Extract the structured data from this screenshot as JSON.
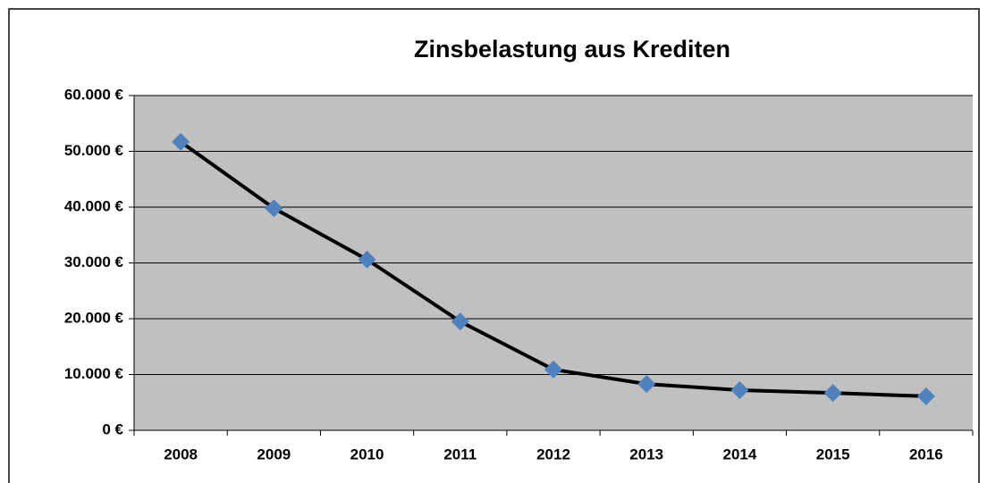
{
  "chart_data": {
    "type": "line",
    "title": "Zinsbelastung aus Krediten",
    "categories": [
      "2008",
      "2009",
      "2010",
      "2011",
      "2012",
      "2013",
      "2014",
      "2015",
      "2016"
    ],
    "series": [
      {
        "name": "Zinsbelastung",
        "color": "#4f81bd",
        "line_color": "#000000",
        "values": [
          51700,
          39800,
          30600,
          19500,
          10900,
          8300,
          7200,
          6700,
          6100
        ]
      }
    ],
    "ylim": [
      0,
      60000
    ],
    "yticks": [
      {
        "value": 0,
        "label": "0 €"
      },
      {
        "value": 10000,
        "label": "10.000 €"
      },
      {
        "value": 20000,
        "label": "20.000 €"
      },
      {
        "value": 30000,
        "label": "30.000 €"
      },
      {
        "value": 40000,
        "label": "40.000 €"
      },
      {
        "value": 50000,
        "label": "50.000 €"
      },
      {
        "value": 60000,
        "label": "60.000 €"
      }
    ],
    "grid": true
  }
}
